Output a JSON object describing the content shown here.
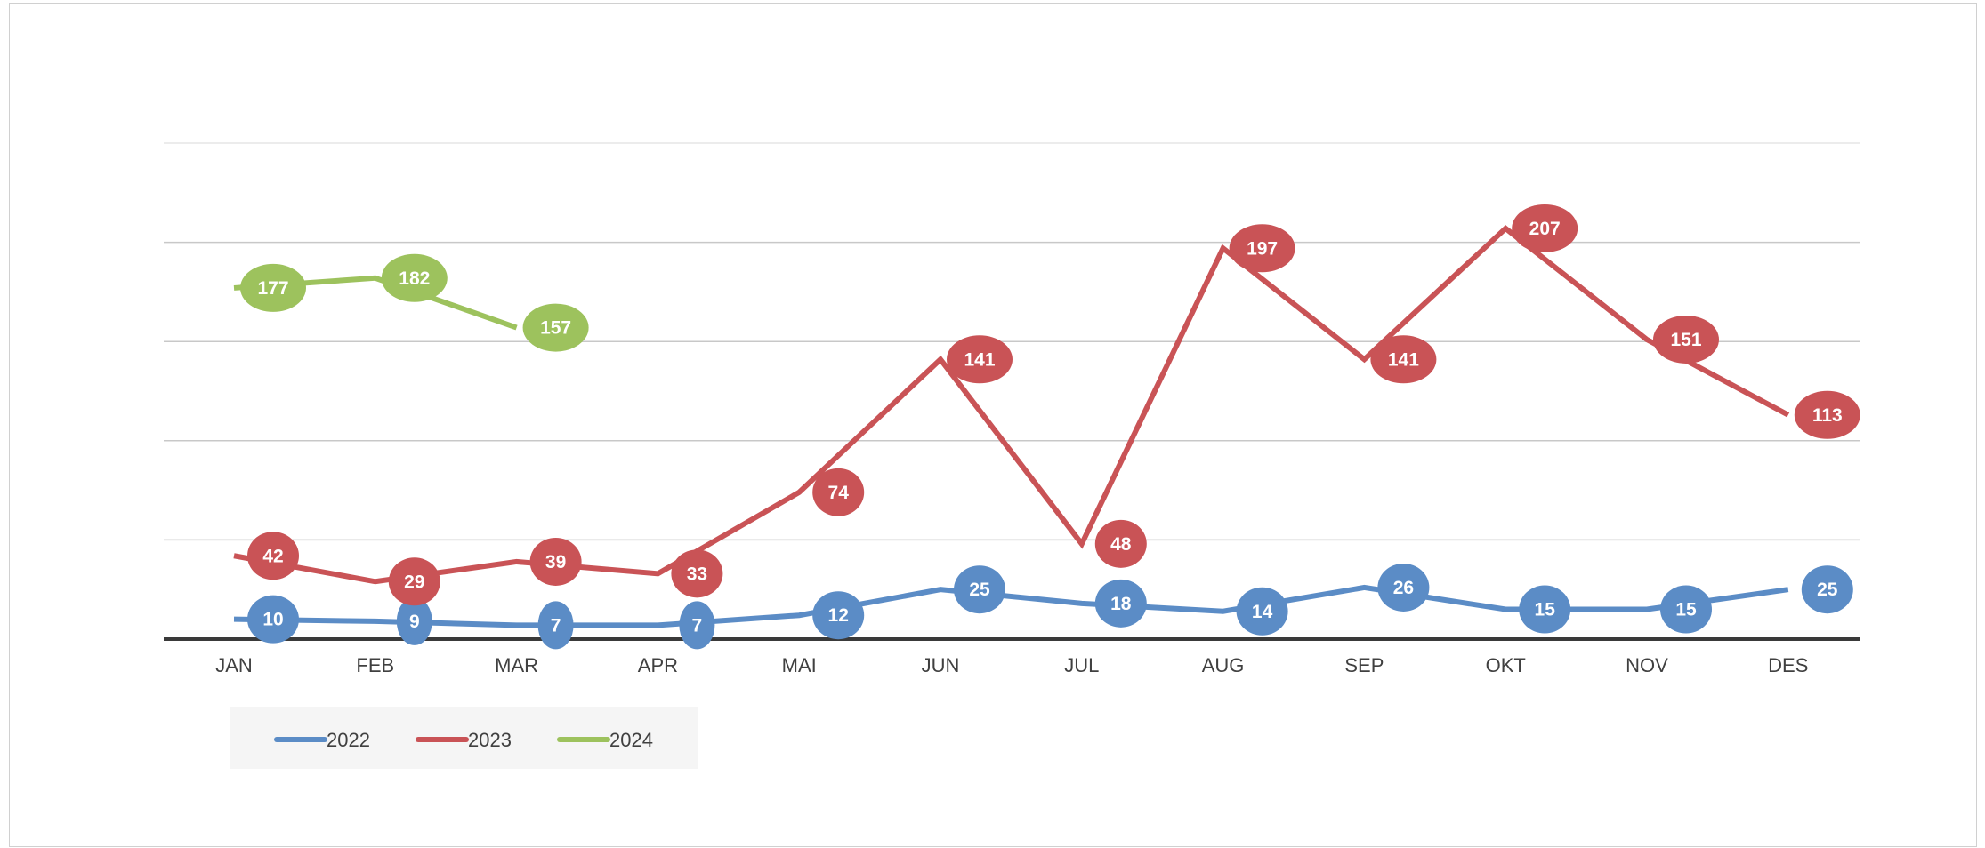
{
  "chart_data": {
    "type": "line",
    "title": "",
    "xlabel": "",
    "ylabel": "",
    "categories": [
      "JAN",
      "FEB",
      "MAR",
      "APR",
      "MAI",
      "JUN",
      "JUL",
      "AUG",
      "SEP",
      "OKT",
      "NOV",
      "DES"
    ],
    "ylim": [
      0,
      250
    ],
    "y_gridlines": [
      50,
      100,
      150,
      200,
      250
    ],
    "y_tick_labels_visible": false,
    "grid": true,
    "data_labels": true,
    "legend_position": "bottom-left",
    "series": [
      {
        "name": "2022",
        "color": "#5b8cc6",
        "values": [
          10,
          9,
          7,
          7,
          12,
          25,
          18,
          14,
          26,
          15,
          15,
          25
        ]
      },
      {
        "name": "2023",
        "color": "#c95356",
        "values": [
          42,
          29,
          39,
          33,
          74,
          141,
          48,
          197,
          141,
          207,
          151,
          113
        ]
      },
      {
        "name": "2024",
        "color": "#9dc25d",
        "values": [
          177,
          182,
          157,
          null,
          null,
          null,
          null,
          null,
          null,
          null,
          null,
          null
        ]
      }
    ]
  }
}
